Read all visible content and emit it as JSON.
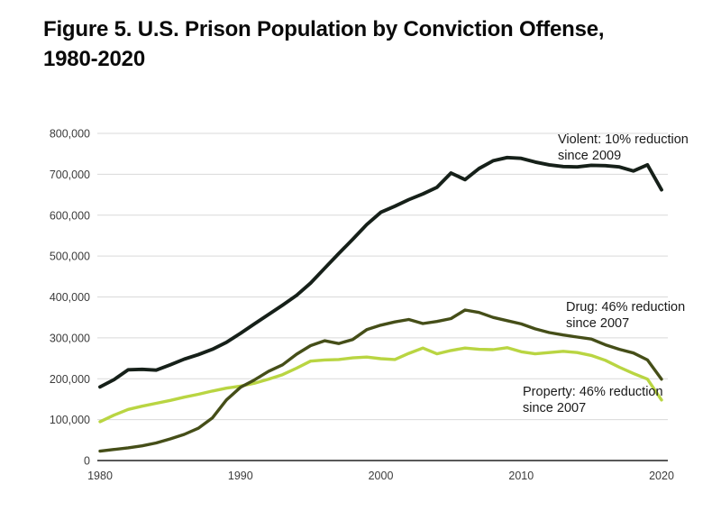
{
  "figure": {
    "title_line1": "Figure 5. U.S. Prison Population by Conviction Offense,",
    "title_line2": "1980-2020"
  },
  "chart_data": {
    "type": "line",
    "title": "Figure 5. U.S. Prison Population by Conviction Offense, 1980-2020",
    "xlabel": "",
    "ylabel": "",
    "xlim": [
      1980,
      2020
    ],
    "ylim": [
      0,
      800000
    ],
    "grid": "horizontal",
    "legend_position": "direct-labels-on-chart",
    "xticks": [
      1980,
      1990,
      2000,
      2010,
      2020
    ],
    "yticks": [
      0,
      100000,
      200000,
      300000,
      400000,
      500000,
      600000,
      700000,
      800000
    ],
    "ytick_labels": [
      "0",
      "100,000",
      "200,000",
      "300,000",
      "400,000",
      "500,000",
      "600,000",
      "700,000",
      "800,000"
    ],
    "colors": {
      "grid": "#d9d9d9",
      "axis": "#404040",
      "tick_text": "#3c3c3c",
      "annotation_text": "#1a1a1a",
      "title_text": "#0a0a0a"
    },
    "x": [
      1980,
      1981,
      1982,
      1983,
      1984,
      1985,
      1986,
      1987,
      1988,
      1989,
      1990,
      1991,
      1992,
      1993,
      1994,
      1995,
      1996,
      1997,
      1998,
      1999,
      2000,
      2001,
      2002,
      2003,
      2004,
      2005,
      2006,
      2007,
      2008,
      2009,
      2010,
      2011,
      2012,
      2013,
      2014,
      2015,
      2016,
      2017,
      2018,
      2019,
      2020
    ],
    "series": [
      {
        "name": "Property",
        "color": "#b9d542",
        "stroke_width": 3.4,
        "values": [
          95000,
          111000,
          125000,
          133000,
          140000,
          147000,
          155000,
          162000,
          170000,
          177000,
          182000,
          189000,
          199000,
          210000,
          226000,
          243000,
          246000,
          247000,
          251000,
          253000,
          249000,
          247000,
          262000,
          275000,
          261000,
          269000,
          275000,
          272000,
          271000,
          276000,
          266000,
          261000,
          264000,
          267000,
          264000,
          257000,
          245000,
          228000,
          213000,
          199000,
          148000
        ]
      },
      {
        "name": "Drug",
        "color": "#454e18",
        "stroke_width": 3.4,
        "values": [
          23000,
          27000,
          31000,
          36000,
          43000,
          53000,
          64000,
          79000,
          104000,
          148000,
          179000,
          197000,
          218000,
          234000,
          260000,
          281000,
          293000,
          286000,
          296000,
          320000,
          331000,
          339000,
          345000,
          335000,
          340000,
          347000,
          368000,
          362000,
          350000,
          342000,
          334000,
          322000,
          313000,
          307000,
          302000,
          297000,
          283000,
          272000,
          263000,
          246000,
          199000
        ]
      },
      {
        "name": "Violent",
        "color": "#162019",
        "stroke_width": 3.9,
        "values": [
          180000,
          198000,
          222000,
          223000,
          221000,
          234000,
          248000,
          259000,
          272000,
          289000,
          311000,
          334000,
          357000,
          380000,
          404000,
          434000,
          470000,
          506000,
          541000,
          577000,
          607000,
          622000,
          638000,
          652000,
          668000,
          703000,
          687000,
          714000,
          733000,
          741000,
          739000,
          730000,
          723000,
          719000,
          718000,
          722000,
          721000,
          718000,
          708000,
          723000,
          662000
        ]
      }
    ],
    "annotations": [
      {
        "series": "Violent",
        "line1": "Violent: 10% reduction",
        "line2": "since 2009"
      },
      {
        "series": "Drug",
        "line1": "Drug: 46% reduction",
        "line2": "since 2007"
      },
      {
        "series": "Property",
        "line1": "Property: 46% reduction",
        "line2": "since 2007"
      }
    ]
  }
}
